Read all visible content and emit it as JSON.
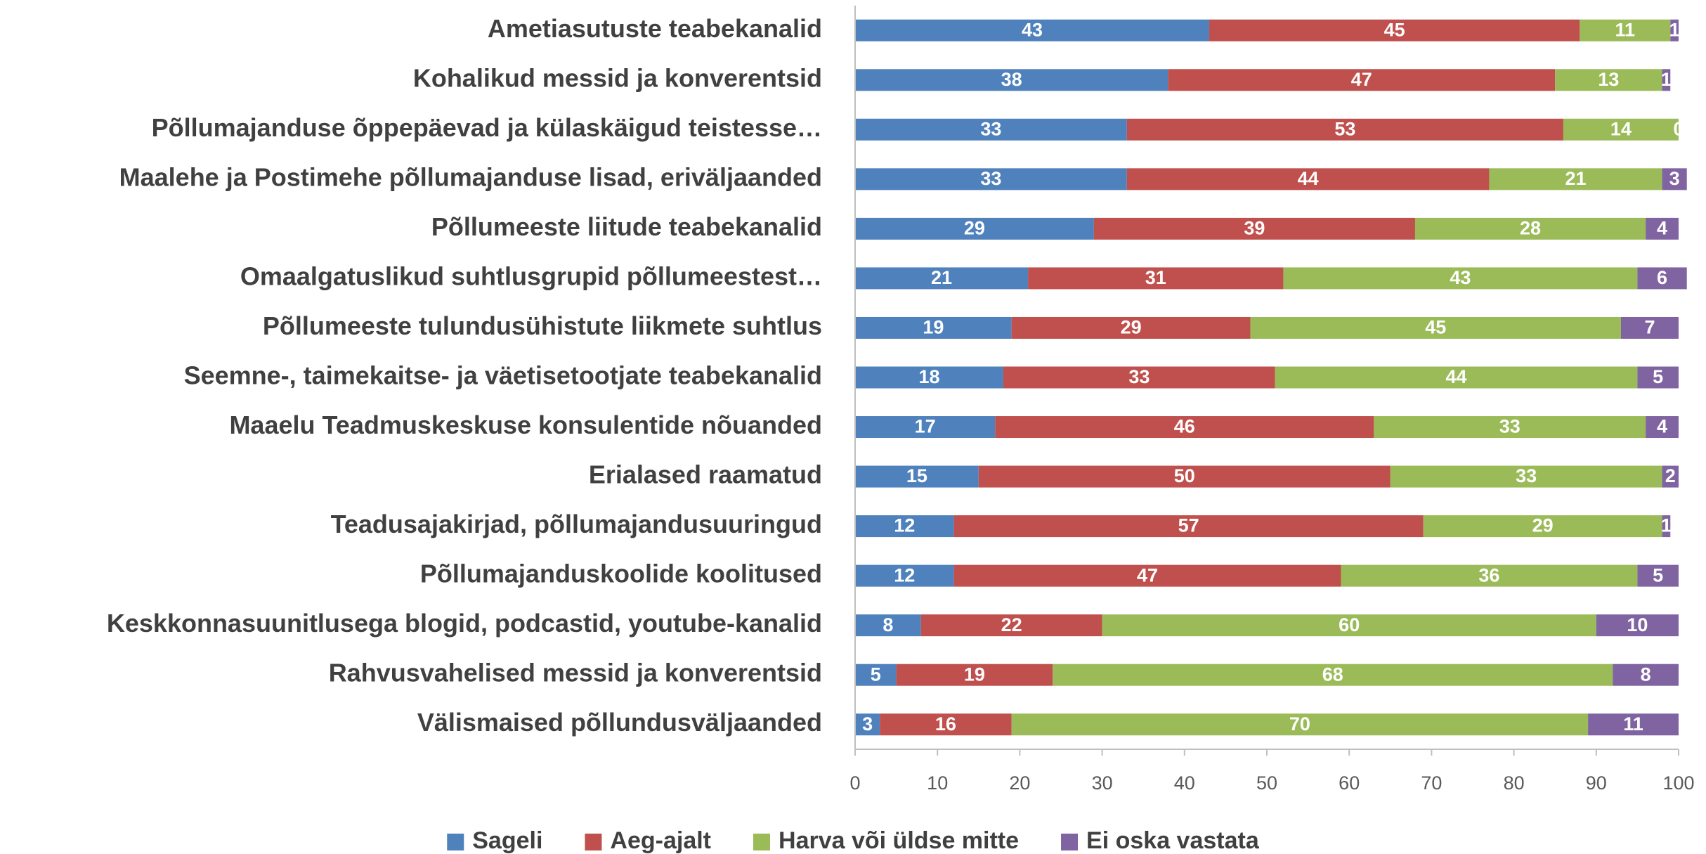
{
  "chart_data": {
    "type": "stacked-barh",
    "categories": [
      "Ametiasutuste teabekanalid",
      "Kohalikud messid ja konverentsid",
      "Põllumajanduse õppepäevad ja külaskäigud teistesse…",
      "Maalehe ja Postimehe põllumajanduse lisad, eriväljaanded",
      "Põllumeeste liitude teabekanalid",
      "Omaalgatuslikud suhtlusgrupid põllumeestest…",
      "Põllumeeste tulundusühistute liikmete suhtlus",
      "Seemne-, taimekaitse- ja väetisetootjate teabekanalid",
      "Maaelu Teadmuskeskuse konsulentide nõuanded",
      "Erialased raamatud",
      "Teadusajakirjad, põllumajandusuuringud",
      "Põllumajanduskoolide koolitused",
      "Keskkonnasuunitlusega blogid, podcastid, youtube-kanalid",
      "Rahvusvahelised messid ja konverentsid",
      "Välismaised põllundusväljaanded"
    ],
    "series": [
      {
        "name": "Sageli",
        "color": "#4f81bd",
        "values": [
          43,
          38,
          33,
          33,
          29,
          21,
          19,
          18,
          17,
          15,
          12,
          12,
          8,
          5,
          3
        ]
      },
      {
        "name": "Aeg-ajalt",
        "color": "#c0504d",
        "values": [
          45,
          47,
          53,
          44,
          39,
          31,
          29,
          33,
          46,
          50,
          57,
          47,
          22,
          19,
          16
        ]
      },
      {
        "name": "Harva või üldse mitte",
        "color": "#9bbb59",
        "values": [
          11,
          13,
          14,
          21,
          28,
          43,
          45,
          44,
          33,
          33,
          29,
          36,
          60,
          68,
          70
        ]
      },
      {
        "name": "Ei oska vastata",
        "color": "#8064a2",
        "values": [
          1,
          1,
          0,
          3,
          4,
          6,
          7,
          5,
          4,
          2,
          1,
          5,
          10,
          8,
          11
        ]
      }
    ],
    "xlim": [
      0,
      100
    ],
    "xticks": [
      0,
      10,
      20,
      30,
      40,
      50,
      60,
      70,
      80,
      90,
      100
    ],
    "legend": "bottom"
  }
}
